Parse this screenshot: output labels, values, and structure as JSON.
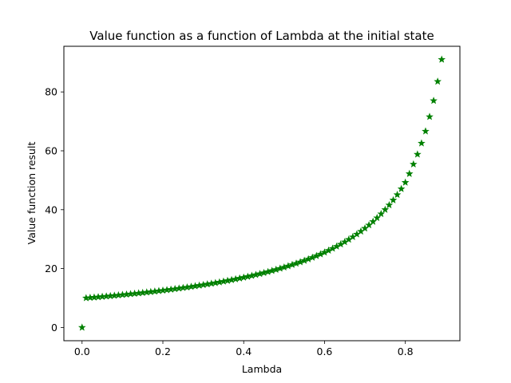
{
  "chart_data": {
    "type": "scatter",
    "title": "Value function as a function of Lambda at the initial state",
    "xlabel": "Lambda",
    "ylabel": "Value function result",
    "xlim": [
      -0.045,
      0.935
    ],
    "ylim": [
      -4.5,
      95.5
    ],
    "xticks": [
      0.0,
      0.2,
      0.4,
      0.6,
      0.8
    ],
    "xtick_labels": [
      "0.0",
      "0.2",
      "0.4",
      "0.6",
      "0.8"
    ],
    "yticks": [
      0,
      20,
      40,
      60,
      80
    ],
    "ytick_labels": [
      "0",
      "20",
      "40",
      "60",
      "80"
    ],
    "grid": false,
    "legend": "none",
    "marker": "star",
    "color": "#008000",
    "series": [
      {
        "x": [
          0.0,
          0.01,
          0.02,
          0.03,
          0.04,
          0.05,
          0.06,
          0.07,
          0.08,
          0.09,
          0.1,
          0.11,
          0.12,
          0.13,
          0.14,
          0.15,
          0.16,
          0.17,
          0.18,
          0.19,
          0.2,
          0.21,
          0.22,
          0.23,
          0.24,
          0.25,
          0.26,
          0.27,
          0.28,
          0.29,
          0.3,
          0.31,
          0.32,
          0.33,
          0.34,
          0.35,
          0.36,
          0.37,
          0.38,
          0.39,
          0.4,
          0.41,
          0.42,
          0.43,
          0.44,
          0.45,
          0.46,
          0.47,
          0.48,
          0.49,
          0.5,
          0.51,
          0.52,
          0.53,
          0.54,
          0.55,
          0.56,
          0.57,
          0.58,
          0.59,
          0.6,
          0.61,
          0.62,
          0.63,
          0.64,
          0.65,
          0.66,
          0.67,
          0.68,
          0.69,
          0.7,
          0.71,
          0.72,
          0.73,
          0.74,
          0.75,
          0.76,
          0.77,
          0.78,
          0.79,
          0.8,
          0.81,
          0.82,
          0.83,
          0.84,
          0.85,
          0.86,
          0.87,
          0.88,
          0.89
        ],
        "y": [
          0.0,
          10.0,
          10.11,
          10.22,
          10.34,
          10.46,
          10.58,
          10.7,
          10.83,
          10.96,
          11.09,
          11.22,
          11.36,
          11.5,
          11.64,
          11.79,
          11.94,
          12.09,
          12.25,
          12.41,
          12.57,
          12.74,
          12.91,
          13.09,
          13.27,
          13.46,
          13.65,
          13.84,
          14.05,
          14.25,
          14.47,
          14.69,
          14.91,
          15.14,
          15.38,
          15.63,
          15.88,
          16.14,
          16.41,
          16.69,
          16.98,
          17.27,
          17.58,
          17.89,
          18.22,
          18.56,
          18.9,
          19.27,
          19.64,
          20.03,
          20.43,
          20.85,
          21.29,
          21.74,
          22.21,
          22.7,
          23.21,
          23.75,
          24.31,
          24.89,
          25.5,
          26.14,
          26.81,
          27.52,
          28.26,
          29.04,
          29.87,
          30.74,
          31.66,
          32.63,
          33.67,
          34.77,
          35.95,
          37.21,
          38.56,
          40.01,
          41.57,
          43.25,
          45.08,
          47.07,
          49.25,
          52.19,
          55.43,
          58.8,
          62.57,
          66.64,
          71.56,
          77.01,
          83.54,
          91.02
        ]
      }
    ]
  }
}
